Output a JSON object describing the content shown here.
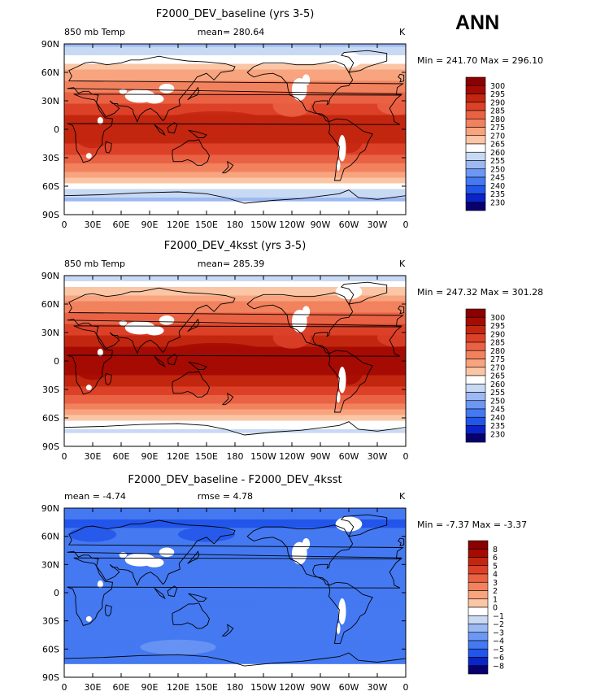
{
  "season_label": "ANN",
  "x_ticks": [
    "0",
    "30E",
    "60E",
    "90E",
    "120E",
    "150E",
    "180",
    "150W",
    "120W",
    "90W",
    "60W",
    "30W",
    "0"
  ],
  "y_ticks": [
    "90N",
    "60N",
    "30N",
    "0",
    "30S",
    "60S",
    "90S"
  ],
  "colors": {
    "abs_scale": [
      "#08006e",
      "#0b24c8",
      "#2255ea",
      "#4479f2",
      "#6c97f5",
      "#9cb9f3",
      "#c8d9f3",
      "#ffffff",
      "#fde2cc",
      "#fbc6a5",
      "#f8a47f",
      "#f2825e",
      "#ea6244",
      "#dc4128",
      "#c3260f",
      "#a50b03",
      "#8b0000"
    ],
    "diff_scale": [
      "#08006e",
      "#0b24c8",
      "#2255ea",
      "#4479f2",
      "#6c97f5",
      "#9cb9f3",
      "#c8d9f3",
      "#ffffff",
      "#fde2cc",
      "#fbc6a5",
      "#f8a47f",
      "#f2825e",
      "#ea6244",
      "#dc4128",
      "#c3260f",
      "#a50b03",
      "#8b0000"
    ],
    "land_mask": "#ffffff",
    "coastline": "#000000"
  },
  "chart_data": [
    {
      "type": "heatmap",
      "title": "F2000_DEV_baseline (yrs 3-5)",
      "left_string": "850 mb Temp",
      "center_string": "mean= 280.64",
      "right_string": "K",
      "stats": "Min = 241.70 Max = 296.10",
      "min": 241.7,
      "max": 296.1,
      "mean": 280.64,
      "units": "K",
      "xlim": [
        0,
        360
      ],
      "ylim": [
        -90,
        90
      ],
      "colorbar_levels": [
        230,
        235,
        240,
        245,
        250,
        255,
        260,
        265,
        270,
        275,
        280,
        285,
        290,
        295,
        300
      ],
      "colorbar_labels": [
        "300",
        "295",
        "290",
        "285",
        "280",
        "275",
        "270",
        "265",
        "260",
        "255",
        "250",
        "245",
        "240",
        "235",
        "230"
      ],
      "zonal_profile": {
        "lat": [
          -90,
          -75,
          -60,
          -45,
          -30,
          -15,
          0,
          15,
          30,
          45,
          60,
          75,
          90
        ],
        "value": [
          243,
          252,
          262,
          274,
          284,
          290,
          292,
          290,
          284,
          277,
          271,
          262,
          252
        ]
      }
    },
    {
      "type": "heatmap",
      "title": "F2000_DEV_4ksst (yrs 3-5)",
      "left_string": "850 mb Temp",
      "center_string": "mean= 285.39",
      "right_string": "K",
      "stats": "Min = 247.32 Max = 301.28",
      "min": 247.32,
      "max": 301.28,
      "mean": 285.39,
      "units": "K",
      "xlim": [
        0,
        360
      ],
      "ylim": [
        -90,
        90
      ],
      "colorbar_levels": [
        230,
        235,
        240,
        245,
        250,
        255,
        260,
        265,
        270,
        275,
        280,
        285,
        290,
        295,
        300
      ],
      "colorbar_labels": [
        "300",
        "295",
        "290",
        "285",
        "280",
        "275",
        "270",
        "265",
        "260",
        "255",
        "250",
        "245",
        "240",
        "235",
        "230"
      ],
      "zonal_profile": {
        "lat": [
          -90,
          -75,
          -60,
          -45,
          -30,
          -15,
          0,
          15,
          30,
          45,
          60,
          75,
          90
        ],
        "value": [
          248,
          257,
          267,
          279,
          289,
          295,
          297,
          295,
          289,
          282,
          276,
          267,
          256
        ]
      }
    },
    {
      "type": "heatmap",
      "title": "F2000_DEV_baseline - F2000_DEV_4ksst",
      "left_string": "mean =   -4.74",
      "center_string": "rmse =    4.78",
      "right_string": "K",
      "stats": "Min =   -7.37 Max =   -3.37",
      "min": -7.37,
      "max": -3.37,
      "mean": -4.74,
      "rmse": 4.78,
      "units": "K",
      "xlim": [
        0,
        360
      ],
      "ylim": [
        -90,
        90
      ],
      "colorbar_levels": [
        -8,
        -6,
        -5,
        -4,
        -3,
        -2,
        -1,
        0,
        1,
        2,
        3,
        4,
        5,
        6,
        8
      ],
      "colorbar_labels": [
        "8",
        "6",
        "5",
        "4",
        "3",
        "2",
        "1",
        "0",
        "−1",
        "−2",
        "−3",
        "−4",
        "−5",
        "−6",
        "−8"
      ],
      "zonal_profile": {
        "lat": [
          -90,
          -75,
          -60,
          -45,
          -30,
          -15,
          0,
          15,
          30,
          45,
          60,
          75,
          90
        ],
        "value": [
          -5.5,
          -4.8,
          -4.6,
          -4.6,
          -4.9,
          -4.8,
          -4.6,
          -4.9,
          -5.0,
          -4.7,
          -4.9,
          -5.1,
          -4.5
        ]
      }
    }
  ]
}
